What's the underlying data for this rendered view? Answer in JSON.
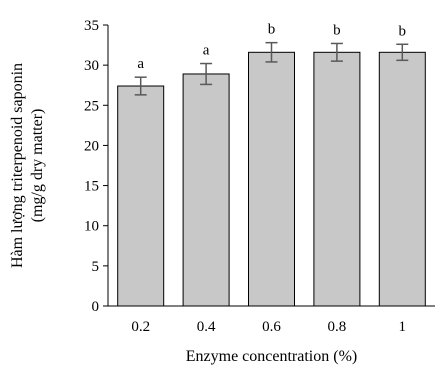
{
  "chart_data": {
    "type": "bar",
    "categories": [
      "0.2",
      "0.4",
      "0.6",
      "0.8",
      "1"
    ],
    "values": [
      27.4,
      28.9,
      31.6,
      31.6,
      31.6
    ],
    "errors": [
      1.1,
      1.3,
      1.2,
      1.1,
      1.0
    ],
    "significance": [
      "a",
      "a",
      "b",
      "b",
      "b"
    ],
    "xlabel": "Enzyme concentration (%)",
    "ylabel_line1": "Hàm lượng triterpenoid saponin",
    "ylabel_line2": "(mg/g dry matter)",
    "ylim": [
      0,
      35
    ],
    "yticks": [
      0,
      5,
      10,
      15,
      20,
      25,
      30,
      35
    ],
    "bar_color": "#c8c8c8",
    "bar_edge_color": "#000000",
    "error_color": "#595959",
    "grid": false,
    "legend": "none"
  }
}
